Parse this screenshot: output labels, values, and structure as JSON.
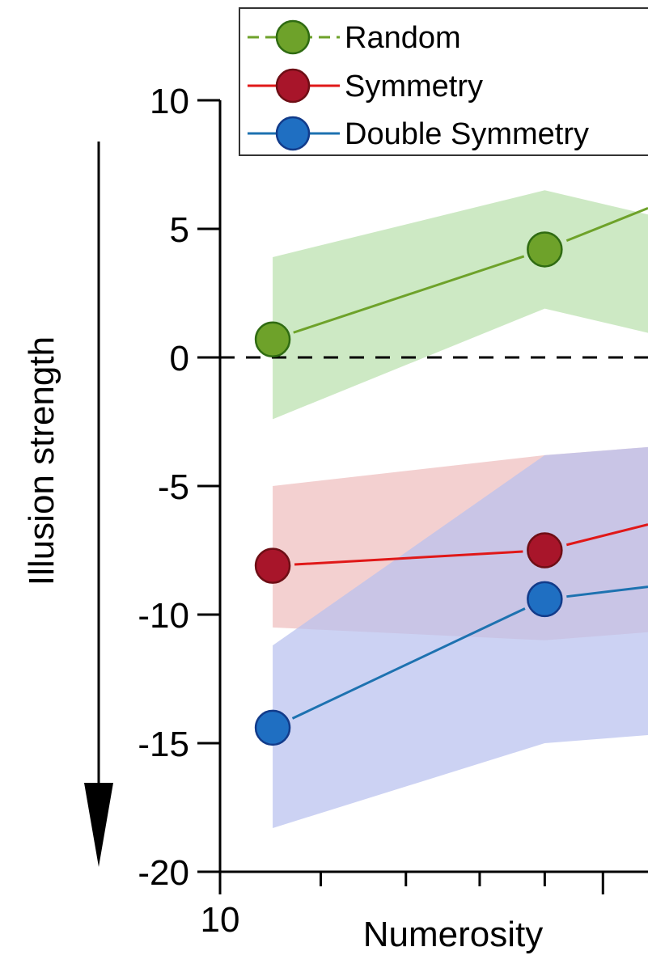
{
  "chart_data": {
    "type": "line",
    "xlabel": "Numerosity",
    "ylabel": "Illusion strength",
    "x_scale": "log",
    "xlim": [
      10,
      21.7
    ],
    "ylim": [
      -20,
      10
    ],
    "y_ticks": [
      10,
      5,
      0,
      -5,
      -10,
      -15,
      -20
    ],
    "x_tick_label": "10",
    "x_ticks": [
      10,
      20
    ],
    "x_minor_ticks": [
      12,
      14,
      16,
      18
    ],
    "reference_line": 0,
    "legend_position": "top-right",
    "series": [
      {
        "name": "Random",
        "color": "#6ea22a",
        "band_color": "#bfe3b4",
        "x": [
          11,
          18
        ],
        "values": [
          0.7,
          4.2
        ],
        "band_lower": [
          -2.4,
          1.9
        ],
        "band_upper": [
          3.9,
          6.5
        ]
      },
      {
        "name": "Symmetry",
        "color": "#e01818",
        "marker_color": "#a8152a",
        "band_color": "#efc3c3",
        "x": [
          11,
          18
        ],
        "values": [
          -8.1,
          -7.5
        ],
        "band_lower": [
          -10.5,
          -11.0
        ],
        "band_upper": [
          -5.0,
          -3.8
        ]
      },
      {
        "name": "Double Symmetry",
        "color": "#1d72b0",
        "marker_color": "#1f6fc2",
        "band_color": "#b8c0ee",
        "x": [
          11,
          18
        ],
        "values": [
          -14.4,
          -9.4
        ],
        "band_lower": [
          -18.3,
          -15.0
        ],
        "band_upper": [
          -11.2,
          -3.8
        ]
      }
    ]
  }
}
